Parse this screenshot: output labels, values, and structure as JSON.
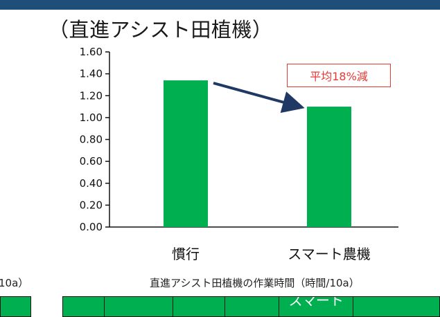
{
  "chart_data": {
    "type": "bar",
    "title": "（直進アシスト田植機）",
    "categories": [
      "慣行",
      "スマート農機"
    ],
    "values": [
      1.34,
      1.1
    ],
    "ylim": [
      0,
      1.6
    ],
    "yticks": [
      "0.00",
      "0.20",
      "0.40",
      "0.60",
      "0.80",
      "1.00",
      "1.20",
      "1.40",
      "1.60"
    ],
    "bar_color": "#00b050",
    "annotation": "平均18%減",
    "annotation_color": "#e53935",
    "arrow_color": "#1f3864",
    "grid": false
  },
  "captions": {
    "left": "10a）",
    "right": "直進アシスト田植機の作業時間（時間/10a）"
  },
  "table": {
    "header_partial": "スマート"
  },
  "colors": {
    "header_bar": "#1f4e79"
  }
}
